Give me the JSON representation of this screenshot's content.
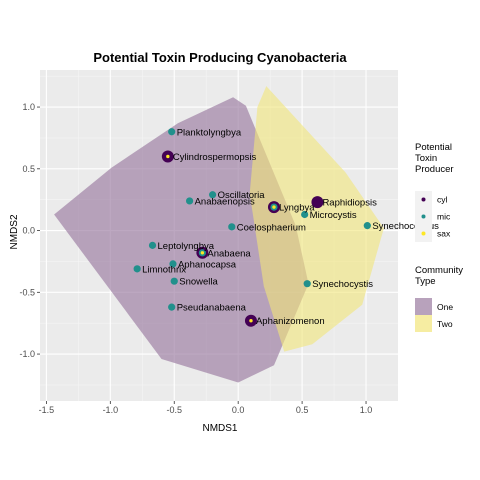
{
  "chart_data": {
    "type": "scatter",
    "title": "Potential Toxin Producing Cyanobacteria",
    "xlabel": "NMDS1",
    "ylabel": "NMDS2",
    "xlim": [
      -1.55,
      1.25
    ],
    "ylim": [
      -1.38,
      1.3
    ],
    "x_ticks": [
      -1.5,
      -1.0,
      -0.5,
      0.0,
      0.5,
      1.0
    ],
    "x_tick_labels": [
      "-1.5",
      "-1.0",
      "-0.5",
      "0.0",
      "0.5",
      "1.0"
    ],
    "y_ticks": [
      -1.0,
      -0.5,
      0.0,
      0.5,
      1.0
    ],
    "y_tick_labels": [
      "-1.0",
      "-0.5",
      "0.0",
      "0.5",
      "1.0"
    ],
    "grid": true,
    "legend_placement": "right",
    "colors": {
      "panel_bg": "#ebebeb",
      "grid_major": "#ffffff",
      "cyl": "#440154",
      "mic": "#21908c",
      "sax": "#fde725",
      "hull_one": "#9a7aa0",
      "hull_two": "#f2e67a"
    },
    "legend_producer": {
      "title_lines": [
        "Potential",
        "Toxin",
        "Producer"
      ],
      "items": [
        {
          "key": "cyl",
          "label": "cyl"
        },
        {
          "key": "mic",
          "label": "mic"
        },
        {
          "key": "sax",
          "label": "sax"
        }
      ]
    },
    "legend_community": {
      "title_lines": [
        "Community",
        "Type"
      ],
      "items": [
        {
          "key": "hull_one",
          "label": "One"
        },
        {
          "key": "hull_two",
          "label": "Two"
        }
      ]
    },
    "hulls": [
      {
        "key": "hull_one",
        "points": [
          [
            -1.44,
            0.13
          ],
          [
            -0.99,
            0.51
          ],
          [
            -0.47,
            0.87
          ],
          [
            -0.04,
            1.08
          ],
          [
            0.06,
            1.01
          ],
          [
            0.45,
            0.04
          ],
          [
            0.55,
            -0.43
          ],
          [
            0.28,
            -1.09
          ],
          [
            0.0,
            -1.23
          ],
          [
            -0.6,
            -1.04
          ]
        ]
      },
      {
        "key": "hull_two",
        "points": [
          [
            0.22,
            1.17
          ],
          [
            0.84,
            0.47
          ],
          [
            1.14,
            0.02
          ],
          [
            0.97,
            -0.6
          ],
          [
            0.58,
            -0.92
          ],
          [
            0.36,
            -0.98
          ],
          [
            0.2,
            -0.45
          ],
          [
            0.09,
            0.3
          ],
          [
            0.15,
            1.0
          ]
        ]
      }
    ],
    "points": [
      {
        "label": "Planktolyngbya",
        "x": -0.52,
        "y": 0.8,
        "producers": [
          "mic"
        ]
      },
      {
        "label": "Cylindrospermopsis",
        "x": -0.55,
        "y": 0.6,
        "producers": [
          "cyl",
          "sax"
        ]
      },
      {
        "label": "Oscillatoria",
        "x": -0.2,
        "y": 0.29,
        "producers": [
          "mic"
        ]
      },
      {
        "label": "Anabaenopsis",
        "x": -0.38,
        "y": 0.24,
        "producers": [
          "mic"
        ]
      },
      {
        "label": "Lyngbya",
        "x": 0.28,
        "y": 0.19,
        "producers": [
          "cyl",
          "mic",
          "sax"
        ]
      },
      {
        "label": "Raphidiopsis",
        "x": 0.62,
        "y": 0.23,
        "producers": [
          "cyl"
        ]
      },
      {
        "label": "Microcystis",
        "x": 0.52,
        "y": 0.13,
        "producers": [
          "mic"
        ]
      },
      {
        "label": "Synechococcus",
        "x": 1.01,
        "y": 0.04,
        "producers": [
          "mic"
        ]
      },
      {
        "label": "Coelosphaerium",
        "x": -0.05,
        "y": 0.03,
        "producers": [
          "mic"
        ]
      },
      {
        "label": "Leptolyngbya",
        "x": -0.67,
        "y": -0.12,
        "producers": [
          "mic"
        ]
      },
      {
        "label": "Anabaena",
        "x": -0.28,
        "y": -0.18,
        "producers": [
          "cyl",
          "mic",
          "sax"
        ]
      },
      {
        "label": "Aphanocapsa",
        "x": -0.51,
        "y": -0.27,
        "producers": [
          "mic"
        ]
      },
      {
        "label": "Limnothrix",
        "x": -0.79,
        "y": -0.31,
        "producers": [
          "mic"
        ]
      },
      {
        "label": "Snowella",
        "x": -0.5,
        "y": -0.41,
        "producers": [
          "mic"
        ]
      },
      {
        "label": "Synechocystis",
        "x": 0.54,
        "y": -0.43,
        "producers": [
          "mic"
        ]
      },
      {
        "label": "Pseudanabaena",
        "x": -0.52,
        "y": -0.62,
        "producers": [
          "mic"
        ]
      },
      {
        "label": "Aphanizomenon",
        "x": 0.1,
        "y": -0.73,
        "producers": [
          "cyl",
          "sax"
        ]
      }
    ]
  }
}
